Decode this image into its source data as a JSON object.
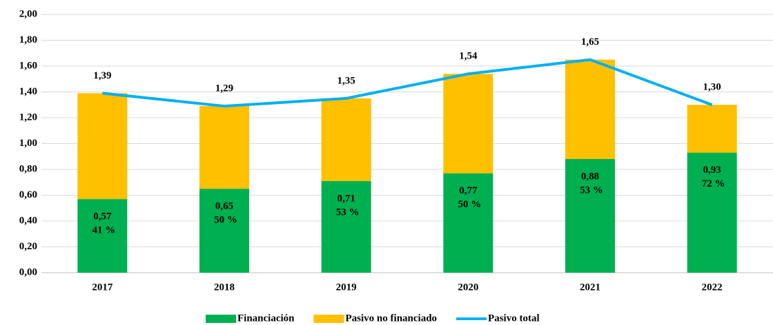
{
  "chart_data": {
    "type": "bar",
    "categories": [
      "2017",
      "2018",
      "2019",
      "2020",
      "2021",
      "2022"
    ],
    "stacked": true,
    "series": [
      {
        "name": "Financiación",
        "type": "bar",
        "color": "#00b050",
        "values": [
          0.57,
          0.65,
          0.71,
          0.77,
          0.88,
          0.93
        ],
        "value_labels": [
          "0,57",
          "0,65",
          "0,71",
          "0,77",
          "0,88",
          "0,93"
        ],
        "shares": [
          41,
          50,
          53,
          50,
          53,
          72
        ],
        "share_labels": [
          "41 %",
          "50 %",
          "53 %",
          "50 %",
          "53 %",
          "72 %"
        ]
      },
      {
        "name": "Pasivo no financiado",
        "type": "bar",
        "color": "#ffc000",
        "values": [
          0.82,
          0.64,
          0.64,
          0.77,
          0.77,
          0.37
        ]
      },
      {
        "name": "Pasivo total",
        "type": "line",
        "color": "#00b0f0",
        "values": [
          1.39,
          1.29,
          1.35,
          1.54,
          1.65,
          1.3
        ],
        "value_labels": [
          "1,39",
          "1,29",
          "1,35",
          "1,54",
          "1,65",
          "1,30"
        ]
      }
    ],
    "ylim": [
      0,
      2
    ],
    "yticks": [
      {
        "value": 0,
        "label": "0,00"
      },
      {
        "value": 0.2,
        "label": "0,20"
      },
      {
        "value": 0.4,
        "label": "0,40"
      },
      {
        "value": 0.6,
        "label": "0,60"
      },
      {
        "value": 0.8,
        "label": "0,80"
      },
      {
        "value": 1.0,
        "label": "1,00"
      },
      {
        "value": 1.2,
        "label": "1,20"
      },
      {
        "value": 1.4,
        "label": "1,40"
      },
      {
        "value": 1.6,
        "label": "1,60"
      },
      {
        "value": 1.8,
        "label": "1,80"
      },
      {
        "value": 2.0,
        "label": "2,00"
      }
    ],
    "grid": true,
    "legend": "bottom"
  }
}
